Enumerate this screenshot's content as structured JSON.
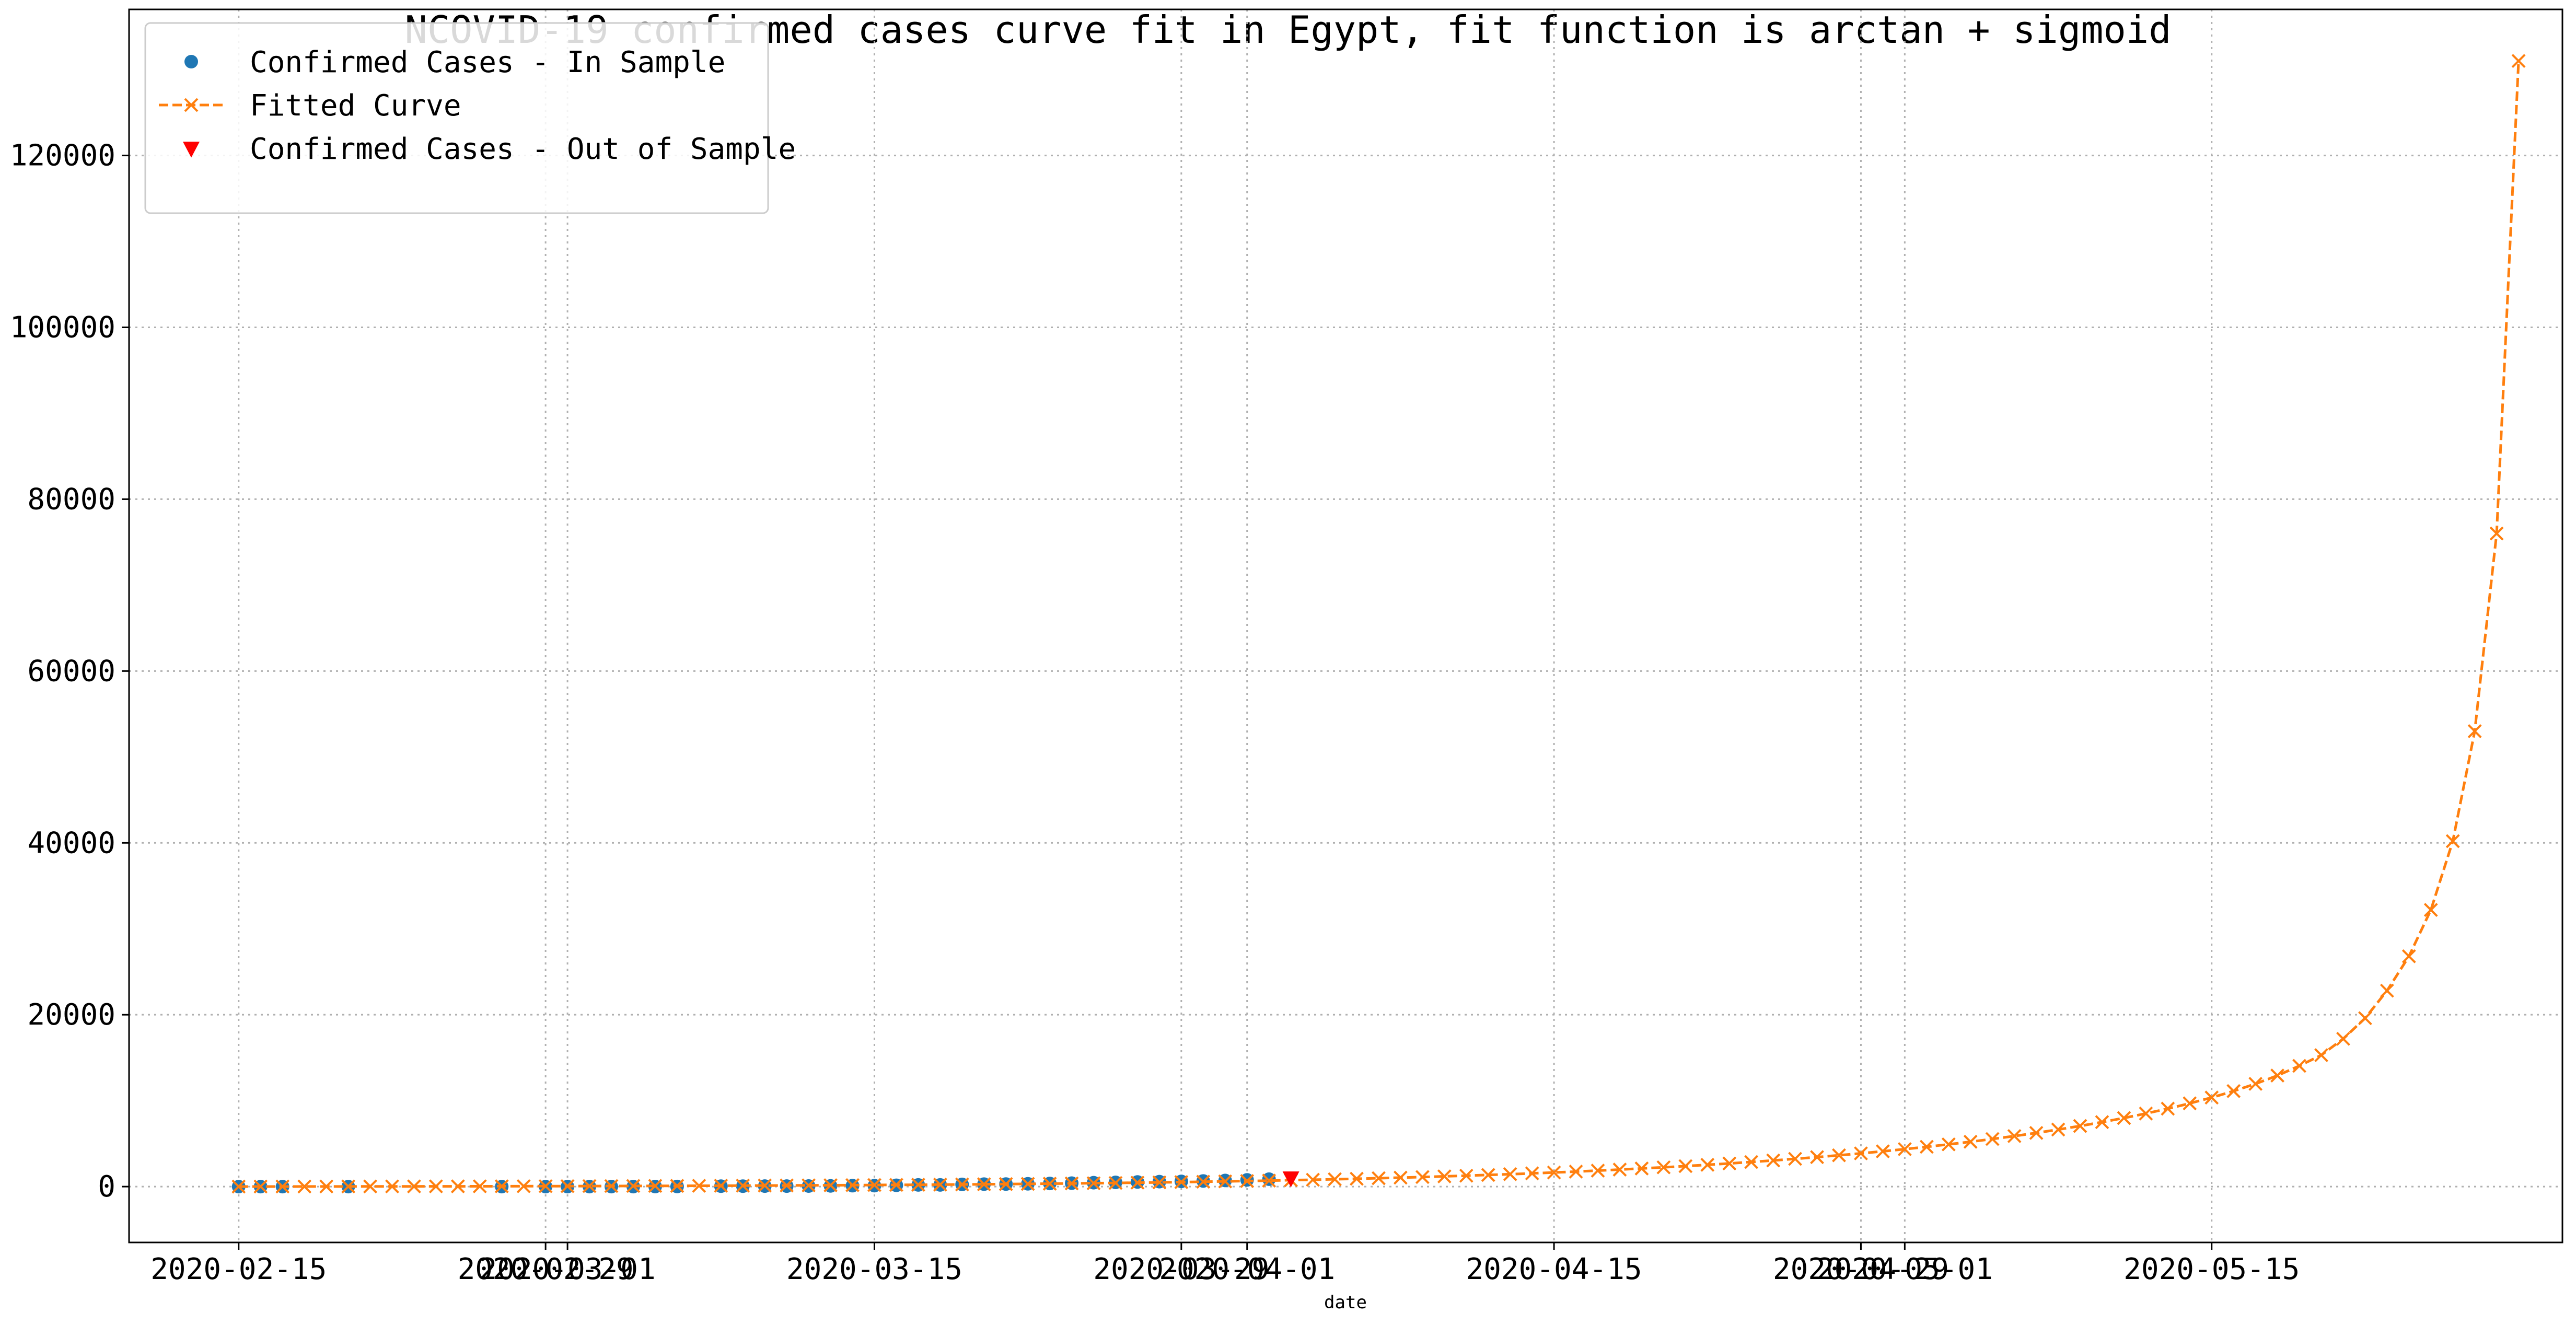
{
  "chart_data": {
    "type": "line",
    "title": "NCOVID-19 confirmed cases curve fit in Egypt, fit function is arctan + sigmoid",
    "xlabel": "date",
    "ylabel": "",
    "x_type": "date",
    "xlim": [
      "2020-02-10",
      "2020-05-31"
    ],
    "ylim": [
      -6500,
      137000
    ],
    "grid": true,
    "legend_position": "top-left",
    "x_ticks": [
      {
        "date": "2020-02-15",
        "label": "2020-02-15"
      },
      {
        "date": "2020-02-29",
        "label": "2020-02-29"
      },
      {
        "date": "2020-03-01",
        "label": "2020-03-01"
      },
      {
        "date": "2020-03-15",
        "label": "2020-03-15"
      },
      {
        "date": "2020-03-29",
        "label": "2020-03-29"
      },
      {
        "date": "2020-04-01",
        "label": "2020-04-01"
      },
      {
        "date": "2020-04-15",
        "label": "2020-04-15"
      },
      {
        "date": "2020-04-29",
        "label": "2020-04-29"
      },
      {
        "date": "2020-05-01",
        "label": "2020-05-01"
      },
      {
        "date": "2020-05-15",
        "label": "2020-05-15"
      }
    ],
    "y_ticks": [
      {
        "value": 0,
        "label": "0"
      },
      {
        "value": 20000,
        "label": "20000"
      },
      {
        "value": 40000,
        "label": "40000"
      },
      {
        "value": 60000,
        "label": "60000"
      },
      {
        "value": 80000,
        "label": "80000"
      },
      {
        "value": 100000,
        "label": "100000"
      },
      {
        "value": 120000,
        "label": "120000"
      }
    ],
    "series": [
      {
        "name": "Confirmed Cases - In Sample",
        "marker": "circle",
        "color": "#1f77b4",
        "points": [
          [
            "2020-02-15",
            1
          ],
          [
            "2020-02-16",
            1
          ],
          [
            "2020-02-17",
            1
          ],
          [
            "2020-02-20",
            1
          ],
          [
            "2020-02-27",
            1
          ],
          [
            "2020-02-29",
            1
          ],
          [
            "2020-03-01",
            2
          ],
          [
            "2020-03-02",
            2
          ],
          [
            "2020-03-03",
            2
          ],
          [
            "2020-03-04",
            2
          ],
          [
            "2020-03-05",
            3
          ],
          [
            "2020-03-06",
            15
          ],
          [
            "2020-03-08",
            49
          ],
          [
            "2020-03-09",
            55
          ],
          [
            "2020-03-10",
            59
          ],
          [
            "2020-03-11",
            60
          ],
          [
            "2020-03-12",
            67
          ],
          [
            "2020-03-13",
            80
          ],
          [
            "2020-03-14",
            109
          ],
          [
            "2020-03-15",
            110
          ],
          [
            "2020-03-16",
            150
          ],
          [
            "2020-03-17",
            196
          ],
          [
            "2020-03-18",
            196
          ],
          [
            "2020-03-19",
            256
          ],
          [
            "2020-03-20",
            285
          ],
          [
            "2020-03-21",
            294
          ],
          [
            "2020-03-22",
            327
          ],
          [
            "2020-03-23",
            366
          ],
          [
            "2020-03-24",
            402
          ],
          [
            "2020-03-25",
            456
          ],
          [
            "2020-03-26",
            495
          ],
          [
            "2020-03-27",
            536
          ],
          [
            "2020-03-28",
            576
          ],
          [
            "2020-03-29",
            609
          ],
          [
            "2020-03-30",
            656
          ],
          [
            "2020-03-31",
            710
          ],
          [
            "2020-04-01",
            779
          ],
          [
            "2020-04-02",
            865
          ]
        ]
      },
      {
        "name": "Fitted Curve",
        "marker": "x",
        "line_style": "dashed",
        "color": "#ff7f0e",
        "points": [
          [
            "2020-02-15",
            3
          ],
          [
            "2020-02-16",
            5
          ],
          [
            "2020-02-17",
            8
          ],
          [
            "2020-02-18",
            10
          ],
          [
            "2020-02-19",
            13
          ],
          [
            "2020-02-20",
            16
          ],
          [
            "2020-02-21",
            19
          ],
          [
            "2020-02-22",
            22
          ],
          [
            "2020-02-23",
            25
          ],
          [
            "2020-02-24",
            29
          ],
          [
            "2020-02-25",
            33
          ],
          [
            "2020-02-26",
            37
          ],
          [
            "2020-02-27",
            41
          ],
          [
            "2020-02-28",
            46
          ],
          [
            "2020-02-29",
            51
          ],
          [
            "2020-03-01",
            56
          ],
          [
            "2020-03-02",
            62
          ],
          [
            "2020-03-03",
            68
          ],
          [
            "2020-03-04",
            74
          ],
          [
            "2020-03-05",
            81
          ],
          [
            "2020-03-06",
            88
          ],
          [
            "2020-03-07",
            96
          ],
          [
            "2020-03-08",
            104
          ],
          [
            "2020-03-09",
            113
          ],
          [
            "2020-03-10",
            123
          ],
          [
            "2020-03-11",
            133
          ],
          [
            "2020-03-12",
            144
          ],
          [
            "2020-03-13",
            156
          ],
          [
            "2020-03-14",
            169
          ],
          [
            "2020-03-15",
            183
          ],
          [
            "2020-03-16",
            198
          ],
          [
            "2020-03-17",
            214
          ],
          [
            "2020-03-18",
            231
          ],
          [
            "2020-03-19",
            250
          ],
          [
            "2020-03-20",
            270
          ],
          [
            "2020-03-21",
            291
          ],
          [
            "2020-03-22",
            314
          ],
          [
            "2020-03-23",
            339
          ],
          [
            "2020-03-24",
            365
          ],
          [
            "2020-03-25",
            393
          ],
          [
            "2020-03-26",
            423
          ],
          [
            "2020-03-27",
            455
          ],
          [
            "2020-03-28",
            489
          ],
          [
            "2020-03-29",
            525
          ],
          [
            "2020-03-30",
            564
          ],
          [
            "2020-03-31",
            605
          ],
          [
            "2020-04-01",
            649
          ],
          [
            "2020-04-02",
            696
          ],
          [
            "2020-04-03",
            745
          ],
          [
            "2020-04-04",
            798
          ],
          [
            "2020-04-05",
            854
          ],
          [
            "2020-04-06",
            913
          ],
          [
            "2020-04-07",
            976
          ],
          [
            "2020-04-08",
            1043
          ],
          [
            "2020-04-09",
            1114
          ],
          [
            "2020-04-10",
            1189
          ],
          [
            "2020-04-11",
            1269
          ],
          [
            "2020-04-12",
            1354
          ],
          [
            "2020-04-13",
            1444
          ],
          [
            "2020-04-14",
            1539
          ],
          [
            "2020-04-15",
            1640
          ],
          [
            "2020-04-16",
            1747
          ],
          [
            "2020-04-17",
            1860
          ],
          [
            "2020-04-18",
            1980
          ],
          [
            "2020-04-19",
            2107
          ],
          [
            "2020-04-20",
            2241
          ],
          [
            "2020-04-21",
            2383
          ],
          [
            "2020-04-22",
            2534
          ],
          [
            "2020-04-23",
            2693
          ],
          [
            "2020-04-24",
            2862
          ],
          [
            "2020-04-25",
            3041
          ],
          [
            "2020-04-26",
            3230
          ],
          [
            "2020-04-27",
            3431
          ],
          [
            "2020-04-28",
            3643
          ],
          [
            "2020-04-29",
            3868
          ],
          [
            "2020-04-30",
            4107
          ],
          [
            "2020-05-01",
            4360
          ],
          [
            "2020-05-02",
            4629
          ],
          [
            "2020-05-03",
            4914
          ],
          [
            "2020-05-04",
            5217
          ],
          [
            "2020-05-05",
            5539
          ],
          [
            "2020-05-06",
            5882
          ],
          [
            "2020-05-07",
            6247
          ],
          [
            "2020-05-08",
            6637
          ],
          [
            "2020-05-09",
            7054
          ],
          [
            "2020-05-10",
            7502
          ],
          [
            "2020-05-11",
            7984
          ],
          [
            "2020-05-12",
            8504
          ],
          [
            "2020-05-13",
            9069
          ],
          [
            "2020-05-14",
            9686
          ],
          [
            "2020-05-15",
            10364
          ],
          [
            "2020-05-16",
            11116
          ],
          [
            "2020-05-17",
            11960
          ],
          [
            "2020-05-18",
            12924
          ],
          [
            "2020-05-19",
            14052
          ],
          [
            "2020-05-20",
            15300
          ],
          [
            "2020-05-21",
            17200
          ],
          [
            "2020-05-22",
            19600
          ],
          [
            "2020-05-23",
            22800
          ],
          [
            "2020-05-24",
            26800
          ],
          [
            "2020-05-25",
            32200
          ],
          [
            "2020-05-26",
            40200
          ],
          [
            "2020-05-27",
            53000
          ],
          [
            "2020-05-28",
            76000
          ],
          [
            "2020-05-29",
            131000
          ]
        ]
      },
      {
        "name": "Confirmed Cases - Out of Sample",
        "marker": "triangle-down",
        "color": "#ff0000",
        "points": [
          [
            "2020-04-03",
            985
          ]
        ]
      }
    ]
  }
}
